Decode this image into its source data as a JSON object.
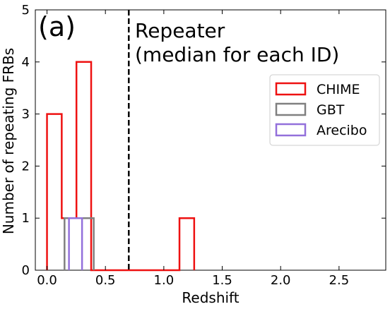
{
  "chart_data": {
    "type": "bar",
    "panel_label": "(a)",
    "annotation": "Repeater\n(median for each ID)",
    "xlabel": "Redshift",
    "ylabel": "Number of repeating FRBs",
    "xlim": [
      -0.1,
      2.9
    ],
    "ylim": [
      0,
      5
    ],
    "xticks": [
      0.0,
      0.5,
      1.0,
      1.5,
      2.0,
      2.5
    ],
    "xtick_labels": [
      "0.0",
      "0.5",
      "1.0",
      "1.5",
      "2.0",
      "2.5"
    ],
    "yticks": [
      0,
      1,
      2,
      3,
      4,
      5
    ],
    "ytick_labels": [
      "0",
      "1",
      "2",
      "3",
      "4",
      "5"
    ],
    "reference_line": {
      "x": 0.7,
      "style": "dashed"
    },
    "legend_position": "upper-right",
    "grid": false,
    "series": [
      {
        "name": "CHIME",
        "color": "#ee1111",
        "bins": [
          0.0,
          0.126,
          0.252,
          0.378,
          0.504,
          0.63,
          0.756,
          0.882,
          1.008,
          1.134,
          1.26
        ],
        "counts": [
          3,
          1,
          4,
          0,
          0,
          0,
          0,
          0,
          0,
          1
        ]
      },
      {
        "name": "GBT",
        "color": "#808080",
        "bins": [
          0.15,
          0.2,
          0.25,
          0.3,
          0.35,
          0.4
        ],
        "counts": [
          1,
          1,
          1,
          1,
          1
        ]
      },
      {
        "name": "Arecibo",
        "color": "#9370db",
        "bins": [
          0.188,
          0.244,
          0.3
        ],
        "counts": [
          1,
          1
        ]
      }
    ]
  }
}
